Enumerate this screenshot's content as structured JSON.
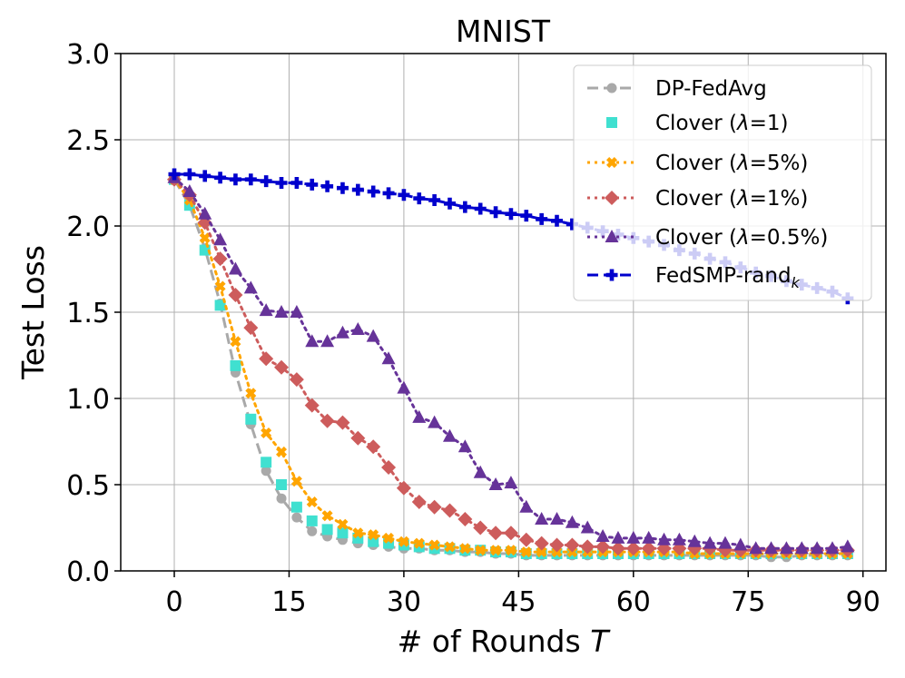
{
  "chart_data": {
    "type": "line",
    "title": "MNIST",
    "xlabel": "# of Rounds",
    "xlabel_var": "T",
    "ylabel": "Test Loss",
    "xlim": [
      -7,
      93
    ],
    "ylim": [
      0,
      3.0
    ],
    "xticks": [
      0,
      15,
      30,
      45,
      60,
      75,
      90
    ],
    "xtick_labels": [
      "0",
      "15",
      "30",
      "45",
      "60",
      "75",
      "90"
    ],
    "yticks": [
      0.0,
      0.5,
      1.0,
      1.5,
      2.0,
      2.5,
      3.0
    ],
    "ytick_labels": [
      "0.0",
      "0.5",
      "1.0",
      "1.5",
      "2.0",
      "2.5",
      "3.0"
    ],
    "grid": true,
    "legend_position": "top-right",
    "x": [
      0,
      2,
      4,
      6,
      8,
      10,
      12,
      14,
      16,
      18,
      20,
      22,
      24,
      26,
      28,
      30,
      32,
      34,
      36,
      38,
      40,
      42,
      44,
      46,
      48,
      50,
      52,
      54,
      56,
      58,
      60,
      62,
      64,
      66,
      68,
      70,
      72,
      74,
      76,
      78,
      80,
      82,
      84,
      86,
      88
    ],
    "series": [
      {
        "name": "DP-FedAvg",
        "legend_label": "DP-FedAvg",
        "color": "#a9a9a9",
        "marker": "circle",
        "dash": "12,6",
        "values": [
          2.27,
          2.12,
          1.87,
          1.55,
          1.15,
          0.85,
          0.58,
          0.42,
          0.31,
          0.23,
          0.2,
          0.18,
          0.16,
          0.15,
          0.14,
          0.13,
          0.13,
          0.12,
          0.12,
          0.11,
          0.11,
          0.1,
          0.1,
          0.09,
          0.09,
          0.09,
          0.09,
          0.09,
          0.09,
          0.09,
          0.09,
          0.09,
          0.09,
          0.09,
          0.09,
          0.09,
          0.09,
          0.09,
          0.09,
          0.08,
          0.08,
          0.09,
          0.09,
          0.09,
          0.09
        ]
      },
      {
        "name": "Clover (λ=1)",
        "legend_prefix": "Clover (",
        "legend_lambda": "λ",
        "legend_suffix": "=1)",
        "color": "#40e0d0",
        "marker": "square",
        "dash": "none",
        "values": [
          2.27,
          2.12,
          1.86,
          1.54,
          1.19,
          0.88,
          0.63,
          0.5,
          0.37,
          0.29,
          0.24,
          0.22,
          0.19,
          0.17,
          0.16,
          0.15,
          0.14,
          0.13,
          0.13,
          0.12,
          0.12,
          0.11,
          0.11,
          0.1,
          0.1,
          0.1,
          0.1,
          0.1,
          0.1,
          0.1,
          0.1,
          0.1,
          0.1,
          0.1,
          0.1,
          0.1,
          0.1,
          0.1,
          0.1,
          0.1,
          0.1,
          0.1,
          0.1,
          0.1,
          0.1
        ]
      },
      {
        "name": "Clover (λ=5%)",
        "legend_prefix": "Clover (",
        "legend_lambda": "λ",
        "legend_suffix": "=5%)",
        "color": "#ffa500",
        "marker": "x",
        "dash": "3,5",
        "values": [
          2.27,
          2.15,
          1.93,
          1.65,
          1.33,
          1.03,
          0.8,
          0.69,
          0.52,
          0.4,
          0.32,
          0.27,
          0.22,
          0.21,
          0.19,
          0.17,
          0.16,
          0.15,
          0.14,
          0.13,
          0.12,
          0.12,
          0.12,
          0.11,
          0.11,
          0.11,
          0.11,
          0.11,
          0.11,
          0.11,
          0.11,
          0.11,
          0.11,
          0.11,
          0.1,
          0.1,
          0.1,
          0.1,
          0.1,
          0.1,
          0.1,
          0.1,
          0.1,
          0.1,
          0.1
        ]
      },
      {
        "name": "Clover (λ=1%)",
        "legend_prefix": "Clover (",
        "legend_lambda": "λ",
        "legend_suffix": "=1%)",
        "color": "#cd5c5c",
        "marker": "diamond",
        "dash": "3,5",
        "values": [
          2.27,
          2.18,
          2.02,
          1.81,
          1.6,
          1.41,
          1.23,
          1.18,
          1.11,
          0.96,
          0.87,
          0.86,
          0.77,
          0.72,
          0.6,
          0.48,
          0.4,
          0.37,
          0.35,
          0.3,
          0.25,
          0.22,
          0.22,
          0.18,
          0.16,
          0.15,
          0.15,
          0.14,
          0.14,
          0.13,
          0.13,
          0.13,
          0.13,
          0.13,
          0.13,
          0.13,
          0.12,
          0.12,
          0.12,
          0.12,
          0.12,
          0.12,
          0.12,
          0.12,
          0.12
        ]
      },
      {
        "name": "Clover (λ=0.5%)",
        "legend_prefix": "Clover (",
        "legend_lambda": "λ",
        "legend_suffix": "=0.5%)",
        "color": "#663399",
        "marker": "triangle",
        "dash": "3,5",
        "values": [
          2.28,
          2.2,
          2.07,
          1.92,
          1.75,
          1.64,
          1.51,
          1.5,
          1.5,
          1.33,
          1.33,
          1.38,
          1.4,
          1.36,
          1.23,
          1.06,
          0.89,
          0.86,
          0.78,
          0.72,
          0.57,
          0.5,
          0.51,
          0.37,
          0.3,
          0.3,
          0.28,
          0.25,
          0.2,
          0.19,
          0.19,
          0.19,
          0.18,
          0.18,
          0.17,
          0.16,
          0.16,
          0.15,
          0.13,
          0.13,
          0.13,
          0.13,
          0.13,
          0.13,
          0.14
        ]
      },
      {
        "name": "FedSMP-rand_k",
        "legend_prefix": "FedSMP-rand",
        "legend_sub": "k",
        "color": "#0000cd",
        "marker": "plus",
        "dash": "12,6",
        "values": [
          2.3,
          2.3,
          2.29,
          2.28,
          2.27,
          2.27,
          2.26,
          2.25,
          2.25,
          2.24,
          2.23,
          2.22,
          2.21,
          2.2,
          2.19,
          2.18,
          2.16,
          2.15,
          2.13,
          2.11,
          2.1,
          2.08,
          2.07,
          2.06,
          2.04,
          2.03,
          2.01,
          1.99,
          1.97,
          1.95,
          1.93,
          1.91,
          1.89,
          1.86,
          1.84,
          1.81,
          1.79,
          1.76,
          1.73,
          1.71,
          1.68,
          1.66,
          1.64,
          1.62,
          1.58
        ]
      }
    ]
  }
}
